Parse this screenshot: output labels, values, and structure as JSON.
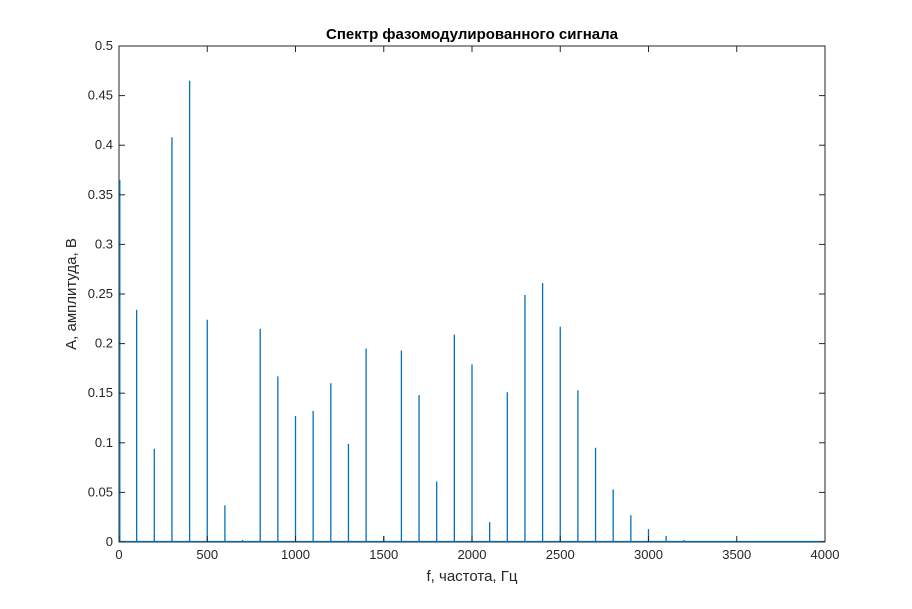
{
  "chart_data": {
    "type": "bar",
    "title": "Спектр фазомодулированного сигнала",
    "xlabel": "f, частота, Гц",
    "ylabel": "A, амплитуда, В",
    "xlim": [
      0,
      4000
    ],
    "ylim": [
      0,
      0.5
    ],
    "xticks": [
      "0",
      "500",
      "1000",
      "1500",
      "2000",
      "2500",
      "3000",
      "3500",
      "4000"
    ],
    "yticks": [
      "0",
      "0.05",
      "0.1",
      "0.15",
      "0.2",
      "0.25",
      "0.3",
      "0.35",
      "0.4",
      "0.45",
      "0.5"
    ],
    "grid": false,
    "color": "#0072BD",
    "x": [
      0,
      100,
      200,
      300,
      400,
      500,
      600,
      700,
      800,
      900,
      1000,
      1100,
      1200,
      1300,
      1400,
      1500,
      1600,
      1700,
      1800,
      1900,
      2000,
      2100,
      2200,
      2300,
      2400,
      2500,
      2600,
      2700,
      2800,
      2900,
      3000,
      3100,
      3200
    ],
    "values": [
      0.365,
      0.234,
      0.094,
      0.408,
      0.465,
      0.224,
      0.037,
      0.002,
      0.215,
      0.167,
      0.127,
      0.132,
      0.16,
      0.099,
      0.195,
      0.006,
      0.193,
      0.148,
      0.061,
      0.209,
      0.179,
      0.02,
      0.151,
      0.249,
      0.261,
      0.217,
      0.153,
      0.095,
      0.053,
      0.027,
      0.013,
      0.006,
      0.002
    ]
  }
}
